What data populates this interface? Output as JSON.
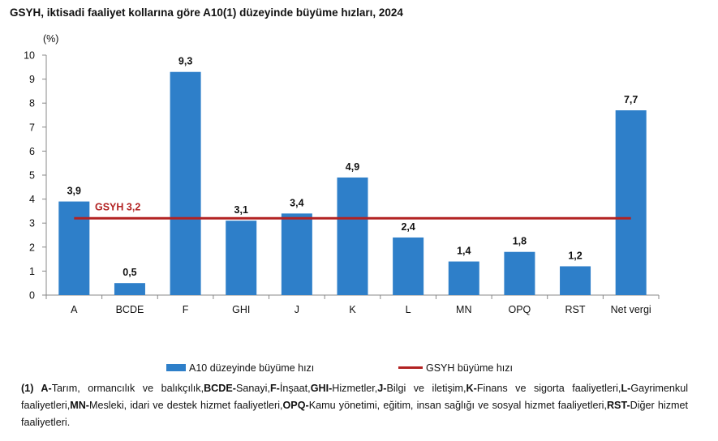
{
  "title": "GSYH, iktisadi faaliyet kollarına göre A10(1) düzeyinde büyüme hızları, 2024",
  "chart_data": {
    "type": "bar",
    "ylabel": "(%)",
    "ylim": [
      0,
      10
    ],
    "yticks": [
      "0",
      "1",
      "2",
      "3",
      "4",
      "5",
      "6",
      "7",
      "8",
      "9",
      "10"
    ],
    "categories": [
      "A",
      "BCDE",
      "F",
      "GHI",
      "J",
      "K",
      "L",
      "MN",
      "OPQ",
      "RST",
      "Net vergi"
    ],
    "series": [
      {
        "name": "A10 düzeyinde büyüme hızı",
        "values": [
          3.9,
          0.5,
          9.3,
          3.1,
          3.4,
          4.9,
          2.4,
          1.4,
          1.8,
          1.2,
          7.7
        ],
        "labels": [
          "3,9",
          "0,5",
          "9,3",
          "3,1",
          "3,4",
          "4,9",
          "2,4",
          "1,4",
          "1,8",
          "1,2",
          "7,7"
        ],
        "color": "#2e7fc9"
      },
      {
        "name": "GSYH büyüme hızı",
        "type": "line",
        "value": 3.2,
        "label": "GSYH 3,2",
        "color": "#b22222"
      }
    ],
    "legend": "bottom",
    "grid": false
  },
  "footnote": [
    {
      "b": "(1) A-",
      "t": "Tarım, ormancılık ve balıkçılık,"
    },
    {
      "b": "BCDE-",
      "t": "Sanayi,"
    },
    {
      "b": "F-",
      "t": "İnşaat,"
    },
    {
      "b": "GHI-",
      "t": "Hizmetler,"
    },
    {
      "b": "J-",
      "t": "Bilgi ve iletişim,"
    },
    {
      "b": "K-",
      "t": "Finans ve sigorta faaliyetleri,"
    },
    {
      "b": "L-",
      "t": "Gayrimenkul faaliyetleri,"
    },
    {
      "b": "MN-",
      "t": "Mesleki, idari ve destek hizmet faaliyetleri,"
    },
    {
      "b": "OPQ-",
      "t": "Kamu yönetimi, eğitim, insan sağlığı ve sosyal hizmet faaliyetleri,"
    },
    {
      "b": "RST-",
      "t": "Diğer hizmet faaliyetleri."
    }
  ]
}
